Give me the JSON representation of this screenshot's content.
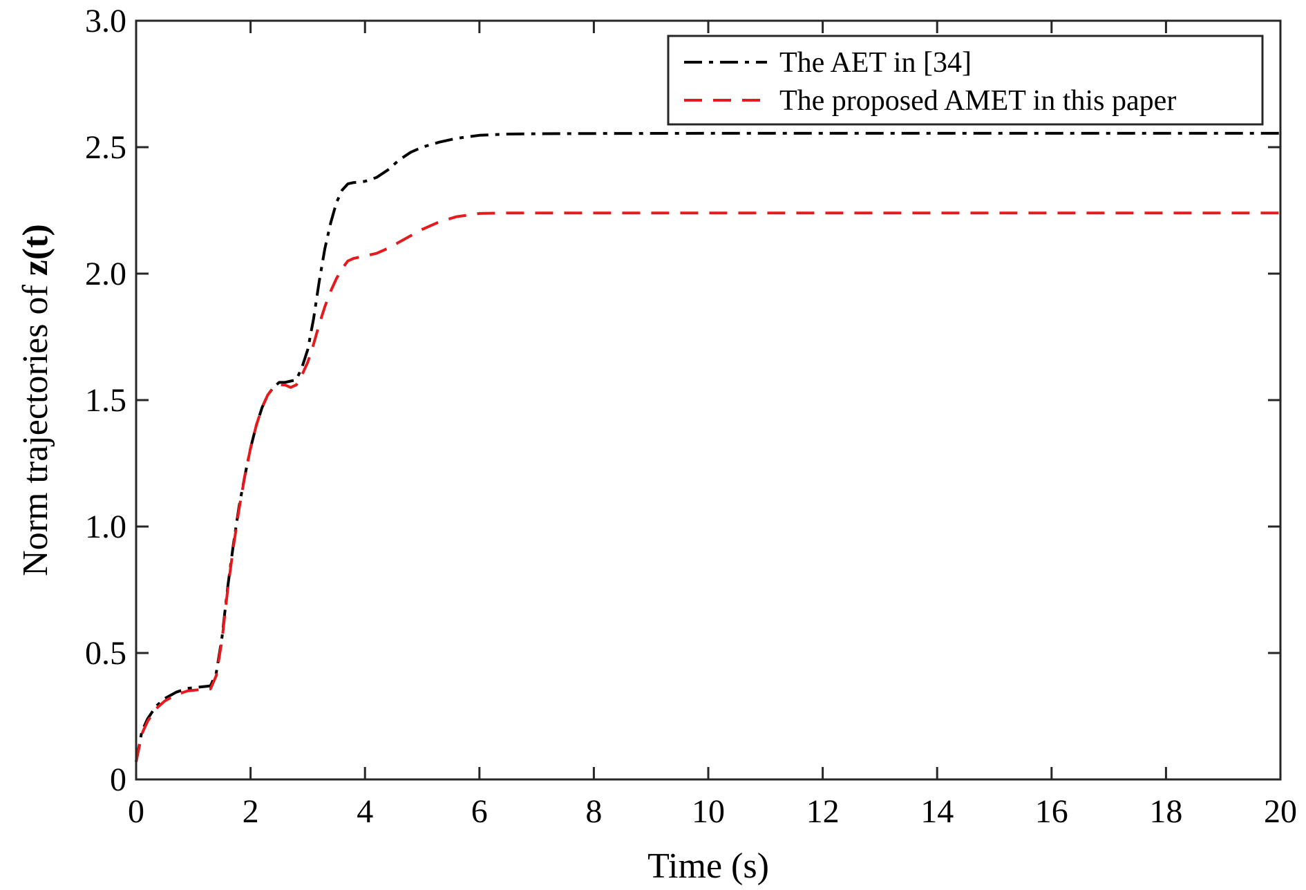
{
  "chart_data": {
    "type": "line",
    "xlabel": "Time (s)",
    "ylabel_prefix": "Norm trajectories of ",
    "ylabel_bold": "z(t)",
    "xlim": [
      0,
      20
    ],
    "ylim": [
      0,
      3
    ],
    "x_ticks": [
      0,
      2,
      4,
      6,
      8,
      10,
      12,
      14,
      16,
      18,
      20
    ],
    "y_ticks": [
      0,
      0.5,
      1.0,
      1.5,
      2.0,
      2.5,
      3.0
    ],
    "x_tick_labels": [
      "0",
      "2",
      "4",
      "6",
      "8",
      "10",
      "12",
      "14",
      "16",
      "18",
      "20"
    ],
    "y_tick_labels": [
      "0",
      "0.5",
      "1.0",
      "1.5",
      "2.0",
      "2.5",
      "3.0"
    ],
    "grid": false,
    "legend_position": "top-right",
    "series": [
      {
        "name": "The AET in [34]",
        "color": "#000000",
        "style": "dash-dot",
        "x": [
          0,
          0.1,
          0.2,
          0.35,
          0.5,
          0.7,
          0.9,
          1.1,
          1.3,
          1.4,
          1.5,
          1.6,
          1.7,
          1.8,
          1.9,
          2.0,
          2.1,
          2.2,
          2.3,
          2.4,
          2.5,
          2.6,
          2.7,
          2.8,
          2.9,
          3.0,
          3.1,
          3.2,
          3.3,
          3.4,
          3.5,
          3.6,
          3.7,
          3.8,
          3.9,
          4.0,
          4.2,
          4.4,
          4.6,
          4.8,
          5.0,
          5.3,
          5.6,
          6.0,
          6.5,
          7.0,
          8.0,
          10.0,
          14.0,
          20.0
        ],
        "y": [
          0.07,
          0.19,
          0.24,
          0.29,
          0.32,
          0.345,
          0.36,
          0.365,
          0.37,
          0.42,
          0.56,
          0.76,
          0.93,
          1.08,
          1.2,
          1.31,
          1.4,
          1.47,
          1.52,
          1.55,
          1.57,
          1.57,
          1.575,
          1.58,
          1.63,
          1.7,
          1.82,
          1.97,
          2.1,
          2.2,
          2.28,
          2.33,
          2.355,
          2.36,
          2.362,
          2.365,
          2.38,
          2.41,
          2.45,
          2.48,
          2.5,
          2.52,
          2.535,
          2.547,
          2.552,
          2.553,
          2.554,
          2.555,
          2.555,
          2.555
        ]
      },
      {
        "name": "The proposed AMET in this paper",
        "color": "#e41a1c",
        "style": "dashed",
        "x": [
          0,
          0.1,
          0.2,
          0.35,
          0.5,
          0.7,
          0.9,
          1.1,
          1.3,
          1.4,
          1.5,
          1.6,
          1.7,
          1.8,
          1.9,
          2.0,
          2.1,
          2.2,
          2.3,
          2.4,
          2.5,
          2.6,
          2.7,
          2.8,
          2.9,
          3.0,
          3.1,
          3.2,
          3.3,
          3.4,
          3.5,
          3.6,
          3.7,
          3.8,
          3.9,
          4.0,
          4.2,
          4.4,
          4.6,
          4.8,
          5.0,
          5.3,
          5.6,
          6.0,
          6.5,
          7.0,
          8.0,
          10.0,
          14.0,
          20.0
        ],
        "y": [
          0.07,
          0.18,
          0.23,
          0.28,
          0.31,
          0.335,
          0.35,
          0.355,
          0.358,
          0.41,
          0.55,
          0.75,
          0.92,
          1.07,
          1.2,
          1.31,
          1.4,
          1.47,
          1.52,
          1.55,
          1.56,
          1.56,
          1.55,
          1.56,
          1.6,
          1.65,
          1.72,
          1.8,
          1.87,
          1.93,
          1.98,
          2.02,
          2.05,
          2.06,
          2.065,
          2.07,
          2.08,
          2.1,
          2.125,
          2.15,
          2.175,
          2.205,
          2.225,
          2.238,
          2.24,
          2.24,
          2.24,
          2.24,
          2.24,
          2.24
        ]
      }
    ]
  }
}
